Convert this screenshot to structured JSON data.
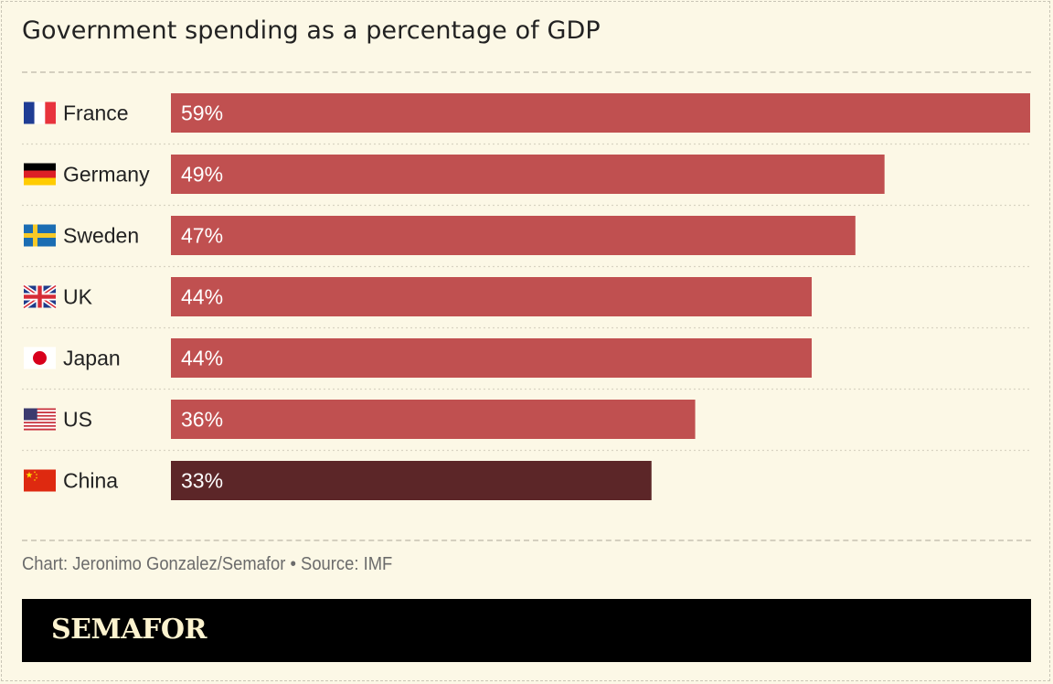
{
  "chart_data": {
    "type": "bar",
    "orientation": "horizontal",
    "title": "Government spending as a percentage of GDP",
    "categories": [
      "France",
      "Germany",
      "Sweden",
      "UK",
      "Japan",
      "US",
      "China"
    ],
    "values": [
      59,
      49,
      47,
      44,
      44,
      36,
      33
    ],
    "value_labels": [
      "59%",
      "49%",
      "47%",
      "44%",
      "44%",
      "36%",
      "33%"
    ],
    "xlim": [
      0,
      59
    ],
    "grid": false,
    "colors": {
      "default": "#c05050",
      "highlight": "#5c2628",
      "highlight_category": "China"
    },
    "flag_icons": [
      "flag-france-icon",
      "flag-germany-icon",
      "flag-sweden-icon",
      "flag-uk-icon",
      "flag-japan-icon",
      "flag-us-icon",
      "flag-china-icon"
    ]
  },
  "credit": "Chart: Jeronimo Gonzalez/Semafor • Source: IMF",
  "brand": "SEMAFOR"
}
